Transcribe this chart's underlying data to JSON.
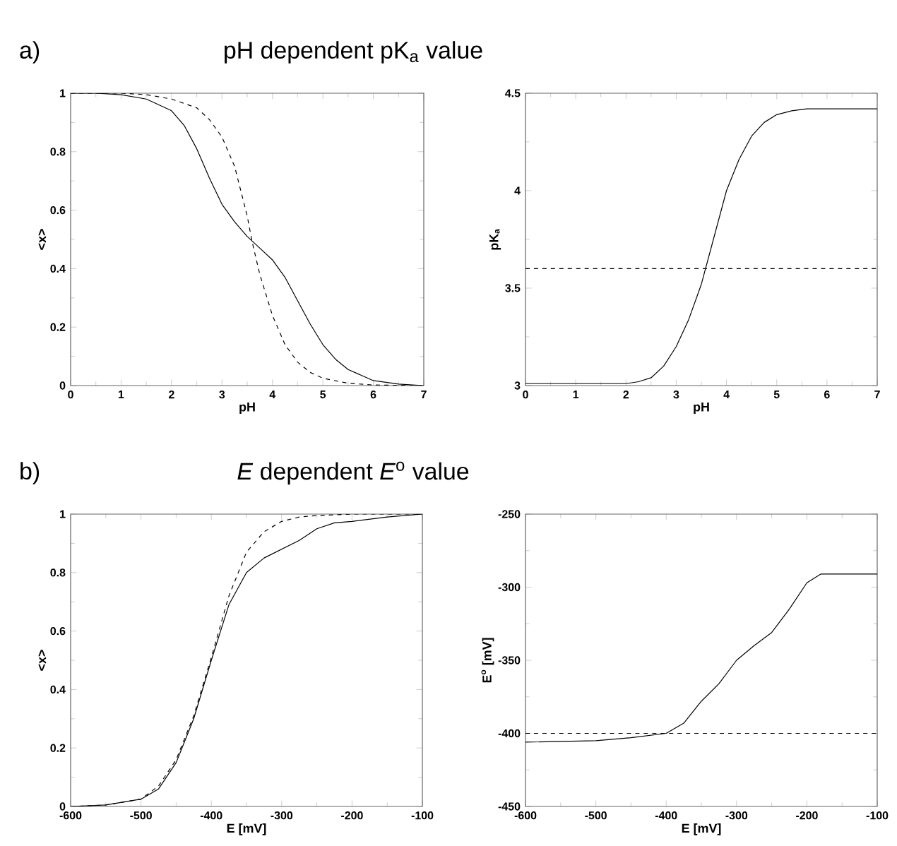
{
  "chart_data": [
    {
      "type": "line",
      "title": "pH dependent pK$_{a}$ value",
      "annotations": [
        "a)"
      ],
      "xlabel": "pH",
      "ylabel": "<x>",
      "xlim": [
        0,
        7
      ],
      "ylim": [
        0,
        1
      ],
      "xticks": [
        0,
        1,
        2,
        3,
        4,
        5,
        6,
        7
      ],
      "yticks": [
        0,
        0.2,
        0.4,
        0.6,
        0.8,
        1
      ],
      "series": [
        {
          "color": "#000000",
          "line_style": "solid",
          "x": [
            0,
            0.5,
            1,
            1.5,
            2,
            2.25,
            2.5,
            2.75,
            3,
            3.25,
            3.5,
            3.75,
            4,
            4.25,
            4.5,
            4.75,
            5,
            5.25,
            5.5,
            6,
            6.5,
            7
          ],
          "values": [
            1,
            1,
            0.995,
            0.98,
            0.94,
            0.89,
            0.81,
            0.71,
            0.62,
            0.56,
            0.51,
            0.47,
            0.43,
            0.37,
            0.29,
            0.21,
            0.14,
            0.09,
            0.055,
            0.017,
            0.005,
            0
          ]
        },
        {
          "color": "#000000",
          "line_style": "dashed",
          "x": [
            0,
            1,
            1.5,
            2,
            2.5,
            2.75,
            3,
            3.25,
            3.5,
            3.6,
            3.75,
            4,
            4.25,
            4.5,
            4.75,
            5,
            5.5,
            6,
            7
          ],
          "values": [
            1,
            1,
            0.995,
            0.98,
            0.95,
            0.91,
            0.85,
            0.75,
            0.58,
            0.49,
            0.38,
            0.24,
            0.14,
            0.08,
            0.045,
            0.025,
            0.008,
            0.002,
            0
          ]
        }
      ]
    },
    {
      "type": "line",
      "xlabel": "pH",
      "ylabel": "pK$_{a}$",
      "xlim": [
        0,
        7
      ],
      "ylim": [
        3,
        4.5
      ],
      "xticks": [
        0,
        1,
        2,
        3,
        4,
        5,
        6,
        7
      ],
      "yticks": [
        3,
        3.5,
        4,
        4.5
      ],
      "series": [
        {
          "color": "#000000",
          "line_style": "solid",
          "x": [
            0,
            1,
            2,
            2.25,
            2.5,
            2.75,
            3,
            3.25,
            3.5,
            3.75,
            4,
            4.25,
            4.5,
            4.75,
            5,
            5.3,
            5.6,
            7
          ],
          "values": [
            3.01,
            3.01,
            3.01,
            3.02,
            3.04,
            3.1,
            3.2,
            3.34,
            3.52,
            3.76,
            4.0,
            4.16,
            4.28,
            4.35,
            4.39,
            4.41,
            4.42,
            4.42
          ]
        }
      ],
      "ref_lines": [
        {
          "axis": "y",
          "value": 3.6,
          "color": "#000000",
          "line_style": "dashed"
        }
      ]
    },
    {
      "type": "line",
      "title": "*E* dependent *E*$^{o}$ value",
      "annotations": [
        "b)"
      ],
      "xlabel": "E [mV]",
      "ylabel": "<x>",
      "xlim": [
        -600,
        -100
      ],
      "ylim": [
        0,
        1
      ],
      "xticks": [
        -600,
        -500,
        -400,
        -300,
        -200,
        -100
      ],
      "yticks": [
        0,
        0.2,
        0.4,
        0.6,
        0.8,
        1
      ],
      "series": [
        {
          "color": "#000000",
          "line_style": "solid",
          "x": [
            -600,
            -550,
            -500,
            -475,
            -450,
            -425,
            -400,
            -375,
            -350,
            -325,
            -300,
            -275,
            -250,
            -225,
            -200,
            -150,
            -100
          ],
          "values": [
            0,
            0.005,
            0.025,
            0.06,
            0.15,
            0.3,
            0.5,
            0.69,
            0.8,
            0.85,
            0.88,
            0.91,
            0.95,
            0.97,
            0.975,
            0.99,
            1
          ]
        },
        {
          "color": "#000000",
          "line_style": "dashed",
          "x": [
            -600,
            -550,
            -500,
            -475,
            -450,
            -425,
            -400,
            -375,
            -350,
            -325,
            -300,
            -275,
            -250,
            -200,
            -100
          ],
          "values": [
            0,
            0.005,
            0.025,
            0.07,
            0.16,
            0.31,
            0.51,
            0.72,
            0.87,
            0.94,
            0.975,
            0.99,
            0.995,
            1,
            1
          ]
        }
      ]
    },
    {
      "type": "line",
      "xlabel": "E [mV]",
      "ylabel": "E$^{o}$ [mV]",
      "xlim": [
        -600,
        -100
      ],
      "ylim": [
        -450,
        -250
      ],
      "xticks": [
        -600,
        -500,
        -400,
        -300,
        -200,
        -100
      ],
      "yticks": [
        -450,
        -400,
        -350,
        -300,
        -250
      ],
      "series": [
        {
          "color": "#000000",
          "line_style": "solid",
          "x": [
            -600,
            -500,
            -450,
            -400,
            -375,
            -350,
            -325,
            -300,
            -275,
            -250,
            -225,
            -200,
            -180,
            -100
          ],
          "values": [
            -406,
            -405,
            -403,
            -400,
            -393,
            -378,
            -366,
            -350,
            -340,
            -331,
            -315,
            -297,
            -291,
            -291
          ]
        }
      ],
      "ref_lines": [
        {
          "axis": "y",
          "value": -400,
          "color": "#000000",
          "line_style": "dashed"
        }
      ]
    }
  ]
}
